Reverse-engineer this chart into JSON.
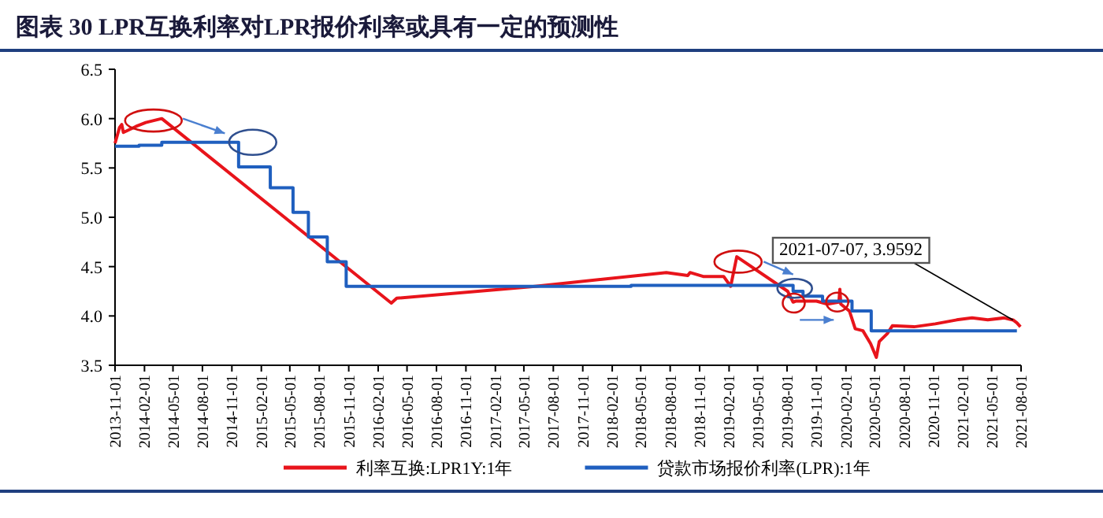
{
  "chart_data": {
    "type": "line",
    "title": "图表 30   LPR互换利率对LPR报价利率或具有一定的预测性",
    "xlim": [
      "2013-11-01",
      "2021-08-01"
    ],
    "xticks": [
      "2013-11-01",
      "2014-02-01",
      "2014-05-01",
      "2014-08-01",
      "2014-11-01",
      "2015-02-01",
      "2015-05-01",
      "2015-08-01",
      "2015-11-01",
      "2016-02-01",
      "2016-05-01",
      "2016-08-01",
      "2016-11-01",
      "2017-02-01",
      "2017-05-01",
      "2017-08-01",
      "2017-11-01",
      "2018-02-01",
      "2018-05-01",
      "2018-08-01",
      "2018-11-01",
      "2019-02-01",
      "2019-05-01",
      "2019-08-01",
      "2019-11-01",
      "2020-02-01",
      "2020-05-01",
      "2020-08-01",
      "2020-11-01",
      "2021-02-01",
      "2021-05-01",
      "2021-08-01"
    ],
    "ylim": [
      3.5,
      6.5
    ],
    "yticks": [
      3.5,
      {
        "value": 4,
        "label": "4.0"
      },
      4.5,
      {
        "value": 5,
        "label": "5.0"
      },
      5.5,
      {
        "value": 6,
        "label": "6.0"
      },
      6.5
    ],
    "legend": "bottom",
    "marker": "none",
    "grid": false,
    "series": [
      {
        "name": "利率互换:LPR1Y:1年",
        "color": "#e8141b",
        "x": [
          "2013-11-01",
          "2013-11-15",
          "2013-11-22",
          "2013-11-27",
          "2014-01-05",
          "2014-02-05",
          "2014-03-27",
          "2016-03-13",
          "2016-03-30",
          "2017-06-05",
          "2018-07-20",
          "2018-09-25",
          "2018-10-02",
          "2018-11-12",
          "2019-01-15",
          "2019-02-06",
          "2019-02-25",
          "2019-08-03",
          "2019-08-20",
          "2019-08-28",
          "2019-11-01",
          "2019-12-05",
          "2020-01-10",
          "2020-01-13",
          "2020-01-16",
          "2020-02-12",
          "2020-03-01",
          "2020-03-25",
          "2020-04-18",
          "2020-05-06",
          "2020-05-15",
          "2020-06-09",
          "2020-06-25",
          "2020-09-01",
          "2020-11-06",
          "2021-01-12",
          "2021-03-01",
          "2021-04-19",
          "2021-06-09",
          "2021-07-07",
          "2021-07-19",
          "2021-07-30"
        ],
        "values": [
          5.75,
          5.91,
          5.94,
          5.86,
          5.92,
          5.96,
          6.0,
          4.13,
          4.18,
          4.3,
          4.44,
          4.41,
          4.44,
          4.4,
          4.4,
          4.3,
          4.6,
          4.25,
          4.14,
          4.15,
          4.15,
          4.12,
          4.14,
          4.27,
          4.12,
          4.05,
          3.87,
          3.85,
          3.72,
          3.58,
          3.74,
          3.82,
          3.9,
          3.89,
          3.92,
          3.96,
          3.98,
          3.96,
          3.98,
          3.9592,
          3.93,
          3.89
        ]
      },
      {
        "name": "贷款市场报价利率(LPR):1年",
        "color": "#1f5fbf",
        "type": "step",
        "x": [
          "2013-11-01",
          "2014-01-15",
          "2014-03-27",
          "2014-11-22",
          "2015-03-01",
          "2015-05-11",
          "2015-06-28",
          "2015-08-26",
          "2015-10-24",
          "2018-04-01",
          "2019-08-20",
          "2019-09-20",
          "2019-11-20",
          "2020-02-20",
          "2020-04-20",
          "2021-07-19"
        ],
        "values": [
          5.72,
          5.73,
          5.76,
          5.51,
          5.3,
          5.05,
          4.8,
          4.55,
          4.3,
          4.31,
          4.25,
          4.2,
          4.15,
          4.05,
          3.85,
          3.85
        ]
      }
    ],
    "annotations": [
      {
        "text": "2021-07-07, 3.9592",
        "x": "2021-07-07",
        "y": 3.9592
      }
    ]
  }
}
